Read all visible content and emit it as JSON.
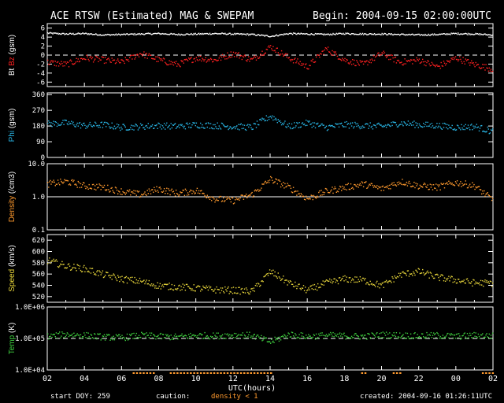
{
  "header": {
    "title": "ACE RTSW (Estimated) MAG & SWEPAM",
    "begin": "Begin: 2004-09-15 02:00:00UTC"
  },
  "footer": {
    "start_doy": "start DOY: 259",
    "caution": "caution:",
    "density_note": "density < 1",
    "created": "created: 2004-09-16 01:26:11UTC"
  },
  "colors": {
    "background": "#000000",
    "axes": "#ffffff",
    "bt": "#ffffff",
    "bz": "#ff2020",
    "phi": "#29b6e6",
    "density": "#ff9a2e",
    "speed": "#e6d43a",
    "temp": "#3ecf3e",
    "caution_bar": "#ff9a2e"
  },
  "chart_data": [
    {
      "type": "line",
      "panel": "mag",
      "ylabel_parts": [
        "Bt",
        "Bz",
        "(gsm)"
      ],
      "ylim": [
        -7,
        7
      ],
      "ticks": [
        {
          "v": 6,
          "label": "6"
        },
        {
          "v": 4,
          "label": "4"
        },
        {
          "v": 2,
          "label": "2"
        },
        {
          "v": 0,
          "label": "0"
        },
        {
          "v": -2,
          "label": "-2"
        },
        {
          "v": -4,
          "label": "-4"
        },
        {
          "v": -6,
          "label": "-6"
        }
      ],
      "reference_line": 0,
      "series": [
        {
          "name": "Bt",
          "color_key": "bt",
          "x": [
            0,
            1,
            2,
            3,
            4,
            5,
            6,
            7,
            8,
            9,
            10,
            11,
            12,
            13,
            14,
            15,
            16,
            17,
            18,
            19,
            20,
            21,
            22,
            23,
            24
          ],
          "values": [
            5.0,
            4.8,
            4.9,
            4.6,
            4.7,
            4.8,
            4.9,
            4.7,
            4.8,
            4.9,
            4.8,
            4.7,
            4.3,
            4.9,
            4.8,
            4.7,
            4.9,
            4.8,
            4.8,
            4.7,
            4.6,
            4.7,
            4.9,
            4.8,
            4.6
          ]
        },
        {
          "name": "Bz",
          "color_key": "bz",
          "x": [
            0,
            1,
            2,
            3,
            4,
            5,
            6,
            7,
            8,
            9,
            10,
            11,
            12,
            13,
            14,
            15,
            16,
            17,
            18,
            19,
            20,
            21,
            22,
            23,
            24
          ],
          "values": [
            -1.5,
            -2.0,
            -0.5,
            -1.0,
            -1.5,
            0.5,
            -1.0,
            -2.0,
            -0.5,
            -1.0,
            0.5,
            -1.0,
            2.0,
            -0.5,
            -2.5,
            1.5,
            -1.0,
            -2.0,
            0.5,
            -1.5,
            -1.0,
            -2.5,
            -0.5,
            -2.0,
            -3.0
          ]
        }
      ]
    },
    {
      "type": "scatter",
      "panel": "phi",
      "ylabel_parts": [
        "Phi",
        "(gsm)"
      ],
      "ylim": [
        0,
        370
      ],
      "ticks": [
        {
          "v": 360,
          "label": "360"
        },
        {
          "v": 270,
          "label": "270"
        },
        {
          "v": 180,
          "label": "180"
        },
        {
          "v": 90,
          "label": "90"
        },
        {
          "v": 0,
          "label": "0"
        }
      ],
      "series": [
        {
          "name": "Phi",
          "color_key": "phi",
          "x": [
            0,
            1,
            2,
            3,
            4,
            5,
            6,
            7,
            8,
            9,
            10,
            11,
            12,
            13,
            14,
            15,
            16,
            17,
            18,
            19,
            20,
            21,
            22,
            23,
            24
          ],
          "values": [
            195,
            200,
            185,
            190,
            175,
            180,
            185,
            180,
            190,
            185,
            180,
            175,
            240,
            180,
            200,
            175,
            190,
            185,
            180,
            200,
            190,
            185,
            175,
            180,
            150
          ]
        }
      ]
    },
    {
      "type": "scatter",
      "panel": "density",
      "ylabel_parts": [
        "Density",
        "(/cm3)"
      ],
      "scale": "log",
      "ylim": [
        0.1,
        10.0
      ],
      "ticks": [
        {
          "v": 10.0,
          "label": "10.0"
        },
        {
          "v": 1.0,
          "label": "1.0"
        },
        {
          "v": 0.1,
          "label": "0.1"
        }
      ],
      "reference_line": 1.0,
      "series": [
        {
          "name": "Density",
          "color_key": "density",
          "x": [
            0,
            1,
            2,
            3,
            4,
            5,
            6,
            7,
            8,
            9,
            10,
            11,
            12,
            13,
            14,
            15,
            16,
            17,
            18,
            19,
            20,
            21,
            22,
            23,
            24
          ],
          "values": [
            2.5,
            3.0,
            2.2,
            2.0,
            1.5,
            1.2,
            1.8,
            1.3,
            1.6,
            0.9,
            0.8,
            1.2,
            3.5,
            2.0,
            0.9,
            1.5,
            2.0,
            2.5,
            1.8,
            3.0,
            2.2,
            2.0,
            2.8,
            2.2,
            0.8
          ]
        }
      ]
    },
    {
      "type": "scatter",
      "panel": "speed",
      "ylabel_parts": [
        "Speed",
        "(km/s)"
      ],
      "ylim": [
        510,
        630
      ],
      "ticks": [
        {
          "v": 620,
          "label": "620"
        },
        {
          "v": 600,
          "label": "600"
        },
        {
          "v": 580,
          "label": "580"
        },
        {
          "v": 560,
          "label": "560"
        },
        {
          "v": 540,
          "label": "540"
        },
        {
          "v": 520,
          "label": "520"
        }
      ],
      "series": [
        {
          "name": "Speed",
          "color_key": "speed",
          "x": [
            0,
            1,
            2,
            3,
            4,
            5,
            6,
            7,
            8,
            9,
            10,
            11,
            12,
            13,
            14,
            15,
            16,
            17,
            18,
            19,
            20,
            21,
            22,
            23,
            24
          ],
          "values": [
            585,
            575,
            570,
            560,
            552,
            548,
            540,
            538,
            536,
            533,
            532,
            530,
            565,
            545,
            532,
            545,
            552,
            550,
            540,
            560,
            565,
            555,
            550,
            545,
            545
          ]
        }
      ]
    },
    {
      "type": "scatter",
      "panel": "temp",
      "ylabel_parts": [
        "Temp",
        "(K)"
      ],
      "scale": "log",
      "ylim": [
        10000,
        1000000
      ],
      "ticks": [
        {
          "v": 1000000,
          "label": "1.0E+06"
        },
        {
          "v": 100000,
          "label": "1.0E+05"
        },
        {
          "v": 10000,
          "label": "1.0E+04"
        }
      ],
      "reference_line": 100000,
      "series": [
        {
          "name": "Temp",
          "color_key": "temp",
          "x": [
            0,
            1,
            2,
            3,
            4,
            5,
            6,
            7,
            8,
            9,
            10,
            11,
            12,
            13,
            14,
            15,
            16,
            17,
            18,
            19,
            20,
            21,
            22,
            23,
            24
          ],
          "values": [
            120000,
            140000,
            130000,
            115000,
            110000,
            130000,
            120000,
            115000,
            130000,
            125000,
            135000,
            130000,
            80000,
            140000,
            120000,
            130000,
            125000,
            120000,
            135000,
            130000,
            125000,
            130000,
            120000,
            130000,
            125000
          ]
        }
      ]
    }
  ],
  "x_axis": {
    "label": "UTC(hours)",
    "range": [
      0,
      24
    ],
    "tick_labels": [
      "02",
      "04",
      "06",
      "08",
      "10",
      "12",
      "14",
      "16",
      "18",
      "20",
      "22",
      "00",
      "02"
    ]
  },
  "caution_intervals": [
    [
      4.6,
      5.8
    ],
    [
      6.6,
      12.0
    ],
    [
      16.9,
      17.2
    ],
    [
      18.6,
      19.1
    ],
    [
      23.4,
      24.0
    ]
  ]
}
